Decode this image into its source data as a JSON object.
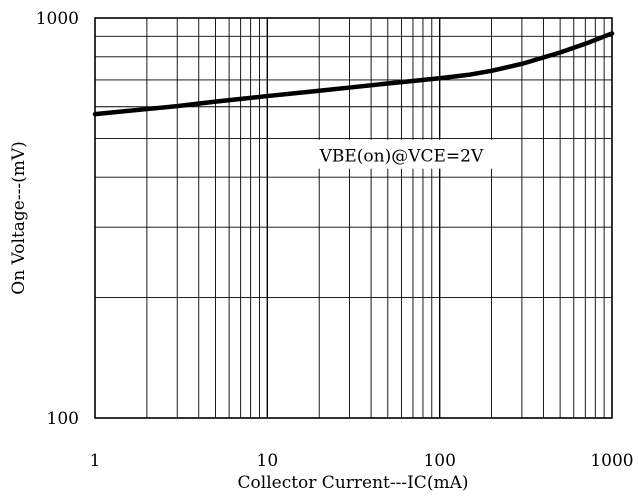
{
  "chart_data": {
    "type": "line",
    "title": "",
    "xlabel": "Collector Current---IC(mA)",
    "ylabel": "On Voltage---(mV)",
    "xscale": "log",
    "yscale": "log",
    "xlim": [
      1,
      1000
    ],
    "ylim": [
      100,
      1000
    ],
    "grid": true,
    "x_ticks": [
      "1",
      "10",
      "100",
      "1000"
    ],
    "y_ticks": [
      "100",
      "1000"
    ],
    "series": [
      {
        "x": [
          1,
          2,
          3,
          5,
          10,
          20,
          30,
          50,
          100,
          150,
          200,
          300,
          500,
          700,
          1000
        ],
        "y": [
          575,
          592,
          602,
          618,
          638,
          658,
          670,
          686,
          707,
          722,
          738,
          768,
          820,
          862,
          915
        ]
      }
    ],
    "annotations": [
      {
        "text": "VBE(on)@VCE=2V",
        "x": 60,
        "y": 450
      }
    ],
    "colors": {
      "line": "#000000",
      "grid": "#000000",
      "background": "#ffffff"
    }
  }
}
